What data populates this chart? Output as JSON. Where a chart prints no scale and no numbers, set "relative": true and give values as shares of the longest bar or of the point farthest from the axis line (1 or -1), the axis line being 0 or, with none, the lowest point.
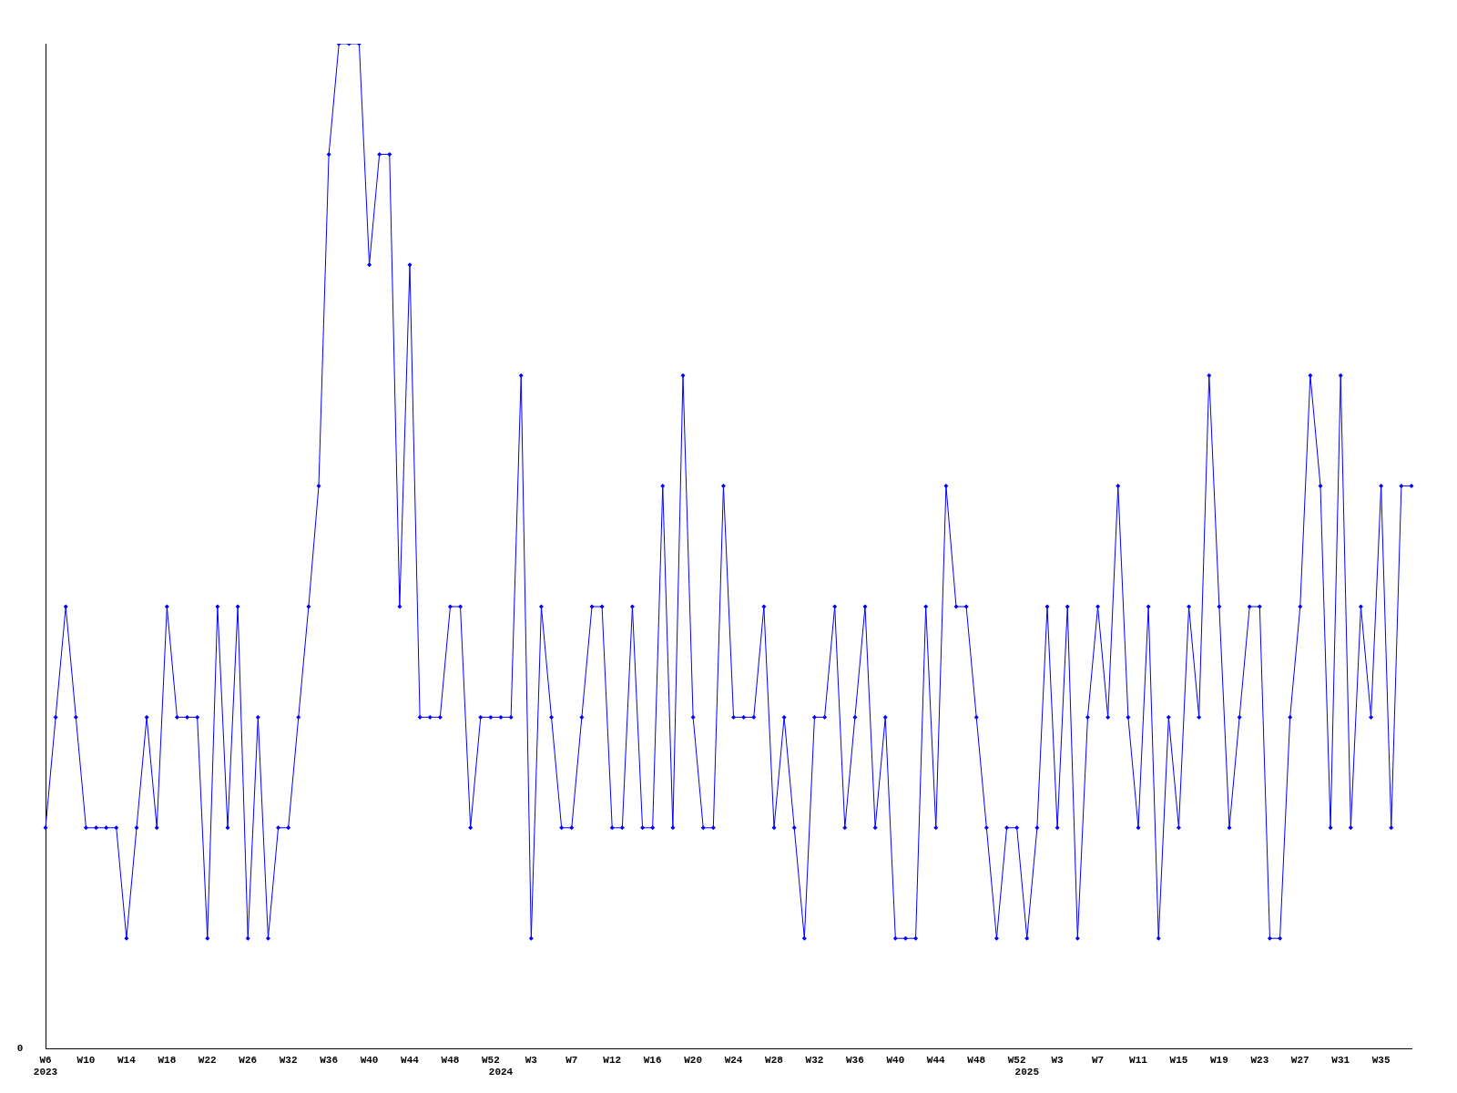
{
  "chart_data": {
    "type": "line",
    "relative": true,
    "annotations": [
      "0"
    ],
    "grid": false,
    "legend": false,
    "marker": "diamond",
    "line_style": "solid",
    "categories": [
      "W6\n2023",
      null,
      null,
      null,
      "W10",
      null,
      null,
      null,
      "W14",
      null,
      null,
      null,
      "W18",
      null,
      null,
      null,
      "W22",
      null,
      null,
      null,
      "W26",
      null,
      null,
      null,
      "W32",
      null,
      null,
      null,
      "W36",
      null,
      null,
      null,
      "W40",
      null,
      null,
      null,
      "W44",
      null,
      null,
      null,
      "W48",
      null,
      null,
      null,
      "W52",
      "\n2024",
      null,
      null,
      "W3",
      null,
      null,
      null,
      "W7",
      null,
      null,
      null,
      "W12",
      null,
      null,
      null,
      "W16",
      null,
      null,
      null,
      "W20",
      null,
      null,
      null,
      "W24",
      null,
      null,
      null,
      "W28",
      null,
      null,
      null,
      "W32",
      null,
      null,
      null,
      "W36",
      null,
      null,
      null,
      "W40",
      null,
      null,
      null,
      "W44",
      null,
      null,
      null,
      "W48",
      null,
      null,
      null,
      "W52",
      "\n2025",
      null,
      null,
      "W3",
      null,
      null,
      null,
      "W7",
      null,
      null,
      null,
      "W11",
      null,
      null,
      null,
      "W15",
      null,
      null,
      null,
      "W19",
      null,
      null,
      null,
      "W23",
      null,
      null,
      null,
      "W27",
      null,
      null,
      null,
      "W31",
      null,
      null,
      null,
      "W35",
      null,
      null,
      null
    ],
    "series": [
      {
        "color": "#0000ff",
        "values": [
          0.22,
          0.33,
          0.44,
          0.33,
          0.22,
          0.22,
          0.22,
          0.22,
          0.11,
          0.22,
          0.33,
          0.22,
          0.44,
          0.33,
          0.33,
          0.33,
          0.11,
          0.44,
          0.22,
          0.44,
          0.11,
          0.33,
          0.11,
          0.22,
          0.22,
          0.33,
          0.44,
          0.56,
          0.89,
          1,
          1,
          1,
          0.78,
          0.89,
          0.89,
          0.44,
          0.78,
          0.33,
          0.33,
          0.33,
          0.44,
          0.44,
          0.22,
          0.33,
          0.33,
          0.33,
          0.33,
          0.67,
          0.11,
          0.44,
          0.33,
          0.22,
          0.22,
          0.33,
          0.44,
          0.44,
          0.22,
          0.22,
          0.44,
          0.22,
          0.22,
          0.56,
          0.22,
          0.67,
          0.33,
          0.22,
          0.22,
          0.56,
          0.33,
          0.33,
          0.33,
          0.44,
          0.22,
          0.33,
          0.22,
          0.11,
          0.33,
          0.33,
          0.44,
          0.22,
          0.33,
          0.44,
          0.22,
          0.33,
          0.11,
          0.11,
          0.11,
          0.44,
          0.22,
          0.56,
          0.44,
          0.44,
          0.33,
          0.22,
          0.11,
          0.22,
          0.22,
          0.11,
          0.22,
          0.44,
          0.22,
          0.44,
          0.11,
          0.33,
          0.44,
          0.33,
          0.56,
          0.33,
          0.22,
          0.44,
          0.11,
          0.33,
          0.22,
          0.44,
          0.33,
          0.67,
          0.44,
          0.22,
          0.33,
          0.44,
          0.44,
          0.11,
          0.11,
          0.33,
          0.44,
          0.67,
          0.56,
          0.22,
          0.67,
          0.22,
          0.44,
          0.33,
          0.56,
          0.22,
          0.56,
          0.56
        ]
      }
    ]
  }
}
